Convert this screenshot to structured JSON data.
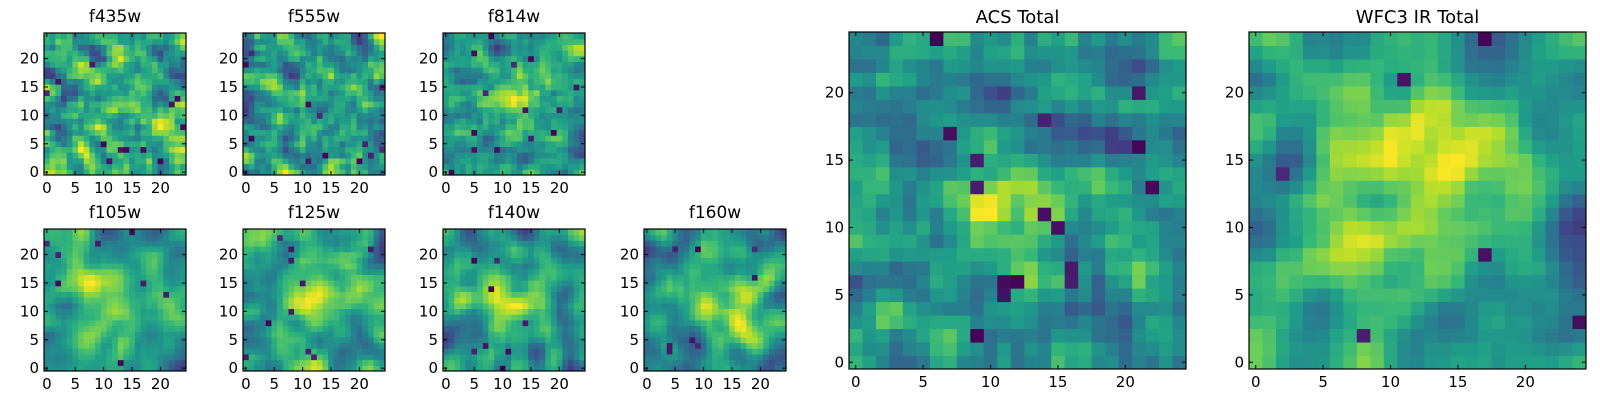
{
  "figure": {
    "colormap": "viridis",
    "colors": {
      "dark": "#440154",
      "mid_dark": "#2a7b8e",
      "mid": "#1fa187",
      "mid_light": "#4ac16d",
      "light": "#a0da39",
      "bright": "#fde725",
      "frame": "#000000"
    }
  },
  "chart_data": [
    {
      "id": "f435w",
      "type": "heatmap",
      "title": "f435w",
      "size": 25,
      "seed": 11,
      "smoothness": 0.2,
      "blob": 0.05,
      "blob_center": [
        12,
        12
      ],
      "blob_radius": 4,
      "dark_spots": 12,
      "xticks": [
        0,
        5,
        10,
        15,
        20
      ],
      "yticks": [
        0,
        5,
        10,
        15,
        20
      ],
      "xlim": [
        -0.5,
        24.5
      ],
      "ylim": [
        -0.5,
        24.5
      ]
    },
    {
      "id": "f555w",
      "type": "heatmap",
      "title": "f555w",
      "size": 25,
      "seed": 23,
      "smoothness": 0.2,
      "blob": 0.05,
      "blob_center": [
        12,
        12
      ],
      "blob_radius": 4,
      "dark_spots": 12,
      "xticks": [
        0,
        5,
        10,
        15,
        20
      ],
      "yticks": [
        0,
        5,
        10,
        15,
        20
      ],
      "xlim": [
        -0.5,
        24.5
      ],
      "ylim": [
        -0.5,
        24.5
      ]
    },
    {
      "id": "f814w",
      "type": "heatmap",
      "title": "f814w",
      "size": 25,
      "seed": 37,
      "smoothness": 0.3,
      "blob": 0.35,
      "blob_center": [
        12,
        12
      ],
      "blob_radius": 3,
      "dark_spots": 14,
      "xticks": [
        0,
        5,
        10,
        15,
        20
      ],
      "yticks": [
        0,
        5,
        10,
        15,
        20
      ],
      "xlim": [
        -0.5,
        24.5
      ],
      "ylim": [
        -0.5,
        24.5
      ]
    },
    {
      "id": "f105w",
      "type": "heatmap",
      "title": "f105w",
      "size": 25,
      "seed": 41,
      "smoothness": 0.65,
      "blob": 0.35,
      "blob_center": [
        12,
        12
      ],
      "blob_radius": 5,
      "dark_spots": 8,
      "xticks": [
        0,
        5,
        10,
        15,
        20
      ],
      "yticks": [
        0,
        5,
        10,
        15,
        20
      ],
      "xlim": [
        -0.5,
        24.5
      ],
      "ylim": [
        -0.5,
        24.5
      ]
    },
    {
      "id": "f125w",
      "type": "heatmap",
      "title": "f125w",
      "size": 25,
      "seed": 53,
      "smoothness": 0.6,
      "blob": 0.3,
      "blob_center": [
        13,
        12
      ],
      "blob_radius": 4,
      "dark_spots": 10,
      "xticks": [
        0,
        5,
        10,
        15,
        20
      ],
      "yticks": [
        0,
        5,
        10,
        15,
        20
      ],
      "xlim": [
        -0.5,
        24.5
      ],
      "ylim": [
        -0.5,
        24.5
      ]
    },
    {
      "id": "f140w",
      "type": "heatmap",
      "title": "f140w",
      "size": 25,
      "seed": 67,
      "smoothness": 0.7,
      "blob": 0.3,
      "blob_center": [
        11,
        13
      ],
      "blob_radius": 5,
      "dark_spots": 8,
      "xticks": [
        0,
        5,
        10,
        15,
        20
      ],
      "yticks": [
        0,
        5,
        10,
        15,
        20
      ],
      "xlim": [
        -0.5,
        24.5
      ],
      "ylim": [
        -0.5,
        24.5
      ]
    },
    {
      "id": "f160w",
      "type": "heatmap",
      "title": "f160w",
      "size": 25,
      "seed": 79,
      "smoothness": 0.7,
      "blob": 0.45,
      "blob_center": [
        13,
        11
      ],
      "blob_radius": 5,
      "dark_spots": 8,
      "xticks": [
        0,
        5,
        10,
        15,
        20
      ],
      "yticks": [
        0,
        5,
        10,
        15,
        20
      ],
      "xlim": [
        -0.5,
        24.5
      ],
      "ylim": [
        -0.5,
        24.5
      ]
    },
    {
      "id": "acs-total",
      "type": "heatmap",
      "title": "ACS Total",
      "size": 25,
      "seed": 97,
      "smoothness": 0.3,
      "blob": 0.45,
      "blob_center": [
        12,
        12
      ],
      "blob_radius": 3,
      "dark_spots": 16,
      "xticks": [
        0,
        5,
        10,
        15,
        20
      ],
      "yticks": [
        0,
        5,
        10,
        15,
        20
      ],
      "xlim": [
        -0.5,
        24.5
      ],
      "ylim": [
        -0.5,
        24.5
      ]
    },
    {
      "id": "wfc3-ir-total",
      "type": "heatmap",
      "title": "WFC3 IR Total",
      "size": 25,
      "seed": 113,
      "smoothness": 0.7,
      "blob": 0.45,
      "blob_center": [
        12,
        13
      ],
      "blob_radius": 5,
      "dark_spots": 6,
      "xticks": [
        0,
        5,
        10,
        15,
        20
      ],
      "yticks": [
        0,
        5,
        10,
        15,
        20
      ],
      "xlim": [
        -0.5,
        24.5
      ],
      "ylim": [
        -0.5,
        24.5
      ]
    }
  ]
}
